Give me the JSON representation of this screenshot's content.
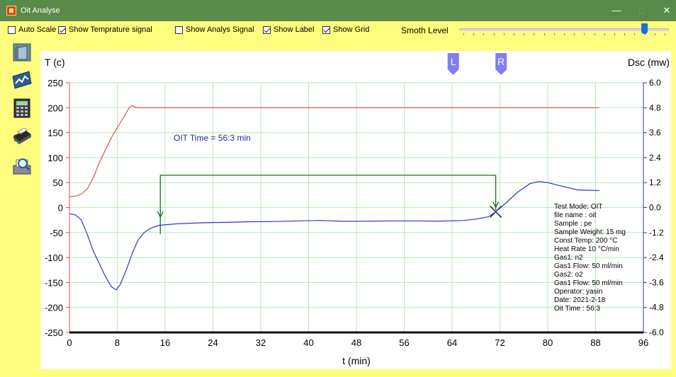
{
  "window": {
    "title": "Oit Analyse",
    "minimize": "—",
    "maximize": "□",
    "close": "✕"
  },
  "options": {
    "auto_scale": {
      "label": "Auto Scale",
      "checked": false
    },
    "show_temperature": {
      "label": "Show Temprature signal",
      "checked": true
    },
    "show_analys": {
      "label": "Show Analys Signal",
      "checked": false
    },
    "show_label": {
      "label": "Show Label",
      "checked": true
    },
    "show_grid": {
      "label": "Show Grid",
      "checked": true
    }
  },
  "smooth": {
    "label": "Smoth Level",
    "min": 0,
    "max": 20,
    "value": 18
  },
  "sidebar": [
    {
      "name": "open-file-button",
      "icon": "folder-icon"
    },
    {
      "name": "analyse-button",
      "icon": "chart-icon"
    },
    {
      "name": "calculator-button",
      "icon": "calculator-icon"
    },
    {
      "name": "print-button",
      "icon": "printer-icon"
    },
    {
      "name": "print-preview-button",
      "icon": "print-preview-icon"
    }
  ],
  "colors": {
    "temperature": "#d9534f",
    "dsc": "#3333cc",
    "grid": "#b5e8b5",
    "annotation": "#1f6b1f",
    "oit_text": "#2a2a9c",
    "marker": "#7f7ff0"
  },
  "markers": {
    "left": {
      "label": "L",
      "x": 64.2
    },
    "right": {
      "label": "R",
      "x": 72.2
    }
  },
  "oit_label": "OIT Time = 56:3 min",
  "info": [
    "Test Mode: OIT",
    "file name : oit",
    "Sample : pe",
    "Sample Weight: 15 mg",
    "Const Temp: 200 °C",
    "Heat Rate 10 °C/min",
    "Gas1: n2",
    "Gas1 Flow: 50 ml/min",
    "Gas2: o2",
    "Gas1 Flow: 50 ml/min",
    "Operator: yasin",
    "Date: 2021-2-18",
    "Oit Time : 56:3"
  ],
  "chart_data": {
    "type": "line",
    "xlabel": "t (min)",
    "ylabel_left": "T (c)",
    "ylabel_right": "Dsc (mw)",
    "xlim": [
      0,
      96
    ],
    "ylim_left": [
      -250,
      250
    ],
    "ylim_right": [
      -6.0,
      6.0
    ],
    "grid": true,
    "x_ticks": [
      "0",
      "8",
      "16",
      "24",
      "32",
      "40",
      "48",
      "56",
      "64",
      "72",
      "80",
      "88",
      "96"
    ],
    "y_ticks_left": [
      "250",
      "200",
      "150",
      "100",
      "50",
      "0",
      "-50",
      "-100",
      "-150",
      "-200",
      "-250"
    ],
    "y_ticks_right": [
      "6.0",
      "4.8",
      "3.6",
      "2.4",
      "1.2",
      "0.0",
      "-1.2",
      "-2.4",
      "-3.6",
      "-4.8",
      "-6.0"
    ],
    "series": [
      {
        "axis": "left",
        "x": [
          0,
          1,
          2,
          3,
          4,
          5,
          6,
          7,
          8,
          9,
          10,
          10.5,
          11,
          12,
          20,
          40,
          60,
          80,
          88.6
        ],
        "y": [
          22,
          23,
          27,
          38,
          60,
          90,
          115,
          140,
          160,
          180,
          200,
          204,
          201,
          200,
          200,
          200,
          200,
          200,
          200
        ]
      },
      {
        "axis": "right",
        "x": [
          0,
          1,
          2,
          3,
          4,
          5,
          6,
          7,
          7.8,
          8.5,
          9.5,
          10.5,
          11.5,
          12.5,
          13.5,
          15,
          18,
          22,
          26,
          30,
          34,
          38,
          42,
          46,
          50,
          54,
          58,
          62,
          66,
          68,
          70,
          71.3,
          73,
          75,
          77,
          78.5,
          80,
          82,
          85,
          88.6
        ],
        "y": [
          -0.3,
          -0.35,
          -0.6,
          -1.3,
          -2.1,
          -2.7,
          -3.3,
          -3.8,
          -3.95,
          -3.7,
          -3.0,
          -2.2,
          -1.55,
          -1.2,
          -1.0,
          -0.85,
          -0.78,
          -0.73,
          -0.71,
          -0.68,
          -0.67,
          -0.64,
          -0.62,
          -0.66,
          -0.65,
          -0.64,
          -0.64,
          -0.65,
          -0.62,
          -0.55,
          -0.45,
          -0.2,
          0.22,
          0.75,
          1.15,
          1.25,
          1.2,
          1.05,
          0.85,
          0.82
        ]
      }
    ],
    "oit_bracket": {
      "x_start": 15.2,
      "x_end": 71.3,
      "y_top": 65,
      "y_low_start": -53,
      "y_low_end": -5
    }
  }
}
